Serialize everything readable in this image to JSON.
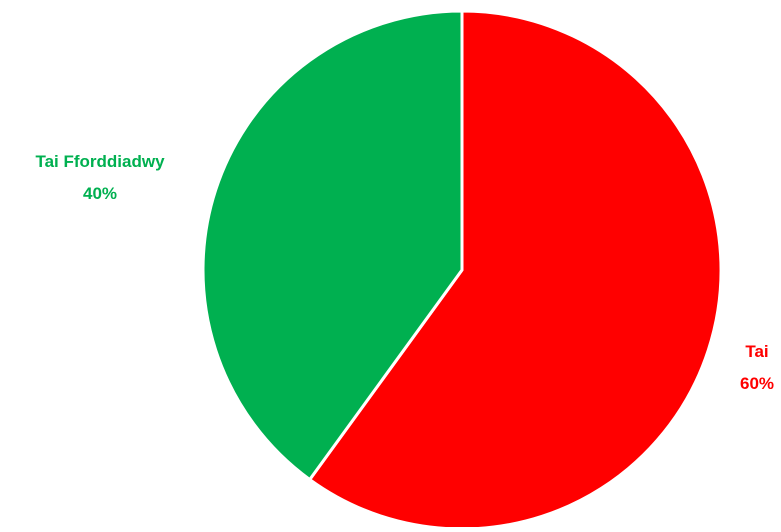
{
  "chart_data": {
    "type": "pie",
    "title": "",
    "start_angle_deg": 0,
    "direction": "clockwise",
    "legend": "none",
    "slices": [
      {
        "name": "Tai",
        "value": 60,
        "label": "60%",
        "color": "#ff0000"
      },
      {
        "name": "Tai Fforddiadwy",
        "value": 40,
        "label": "40%",
        "color": "#00b050"
      }
    ]
  }
}
